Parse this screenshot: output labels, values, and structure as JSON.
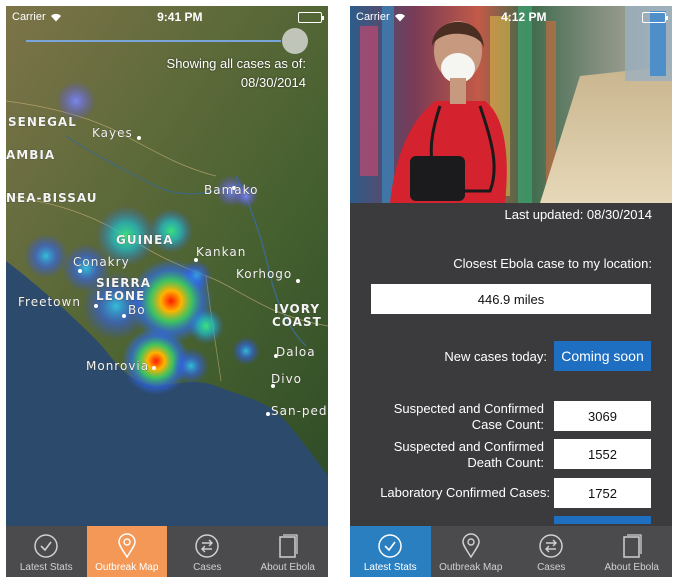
{
  "left_screen": {
    "status": {
      "carrier": "Carrier",
      "time": "9:41 PM"
    },
    "map_info": {
      "line1": "Showing all cases as of:",
      "line2": "08/30/2014"
    },
    "places": [
      "SENEGAL",
      "Kayes",
      "AMBIA",
      "NEA-BISSAU",
      "Bamako",
      "GUINEA",
      "Kankan",
      "Conakry",
      "SIERRA",
      "LEONE",
      "Freetown",
      "Korhogo",
      "Bo",
      "IVORY",
      "COAST",
      "Daloa",
      "Monrovia",
      "Divo",
      "San-ped"
    ],
    "tabs": [
      {
        "label": "Latest Stats",
        "icon": "check-circle-icon"
      },
      {
        "label": "Outbreak Map",
        "icon": "map-pin-icon"
      },
      {
        "label": "Cases",
        "icon": "arrows-circle-icon"
      },
      {
        "label": "About Ebola",
        "icon": "document-icon"
      }
    ],
    "active_tab_color": "#f39856"
  },
  "right_screen": {
    "status": {
      "carrier": "Carrier",
      "time": "4:12 PM"
    },
    "last_updated": "Last updated: 08/30/2014",
    "closest_label": "Closest Ebola case to my location:",
    "closest_value": "446.9 miles",
    "new_cases_label": "New cases today:",
    "new_cases_button": "Coming soon",
    "stats": [
      {
        "line1": "Suspected and Confirmed",
        "line2": "Case Count:",
        "value": "3069"
      },
      {
        "line1": "Suspected and Confirmed",
        "line2": "Death Count:",
        "value": "1552"
      },
      {
        "line1": "Laboratory Confirmed Cases:",
        "line2": "",
        "value": "1752"
      }
    ],
    "tabs": [
      {
        "label": "Latest Stats",
        "icon": "check-circle-icon"
      },
      {
        "label": "Outbreak Map",
        "icon": "map-pin-icon"
      },
      {
        "label": "Cases",
        "icon": "arrows-circle-icon"
      },
      {
        "label": "About Ebola",
        "icon": "document-icon"
      }
    ],
    "active_tab_color": "#2a7fc0"
  }
}
